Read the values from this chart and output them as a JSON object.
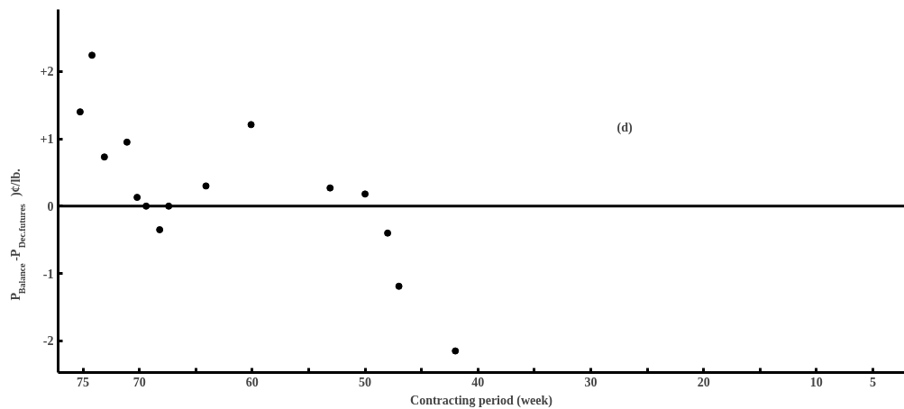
{
  "chart_data": {
    "type": "scatter",
    "xlabel": "Contracting period (week)",
    "ylabel": "P$_{Balance}$-P$_{Dec.futures}$)¢/lb.",
    "x": [
      75.25,
      74.2,
      73.1,
      71.1,
      70.2,
      69.4,
      68.2,
      67.4,
      64.1,
      60.1,
      53.1,
      50.0,
      48.0,
      47.0,
      42.0
    ],
    "values": [
      1.4,
      2.24,
      0.73,
      0.95,
      0.13,
      0.0,
      -0.35,
      0.0,
      0.3,
      1.21,
      0.27,
      0.18,
      -0.4,
      -1.19,
      -2.15
    ],
    "color": "#000000",
    "marker": "circle",
    "xlim": [
      77.2,
      2.2
    ],
    "ylim": [
      -2.47,
      2.92
    ],
    "xticks": [
      75,
      70,
      {
        "value": 65,
        "label": null
      },
      60,
      {
        "value": 55,
        "label": null
      },
      50,
      {
        "value": 45,
        "label": null
      },
      40,
      {
        "value": 35,
        "label": null
      },
      30,
      {
        "value": 25,
        "label": null
      },
      20,
      {
        "value": 15,
        "label": null
      },
      10,
      5
    ],
    "yticks": [
      {
        "value": 2,
        "label": "+2"
      },
      {
        "value": 1,
        "label": "+1"
      },
      0,
      -1,
      -2
    ],
    "ref_lines": [
      {
        "axis": "y",
        "value": 0,
        "label": null,
        "color": "#000000"
      }
    ],
    "annotations": [
      "(d)"
    ],
    "grid": false
  }
}
